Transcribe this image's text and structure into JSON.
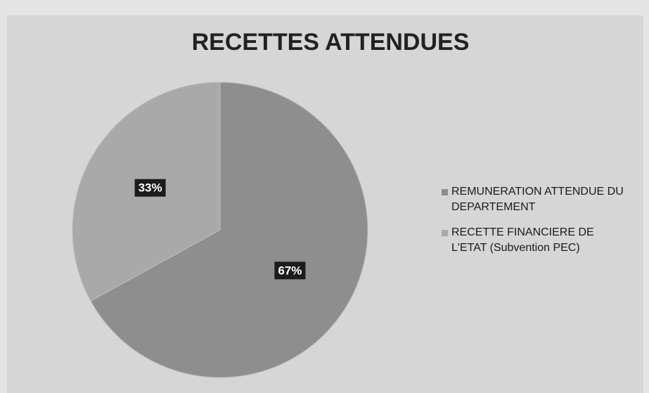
{
  "chart_data": {
    "type": "pie",
    "title": "RECETTES ATTENDUES",
    "categories": [
      "REMUNERATION ATTENDUE DU DEPARTEMENT",
      "RECETTE FINANCIERE DE L'ETAT (Subvention PEC)"
    ],
    "values": [
      67,
      33
    ],
    "value_labels": [
      "67%",
      "33%"
    ],
    "colors": [
      "#8e8e8e",
      "#a9a9a9"
    ],
    "legend": "right"
  }
}
